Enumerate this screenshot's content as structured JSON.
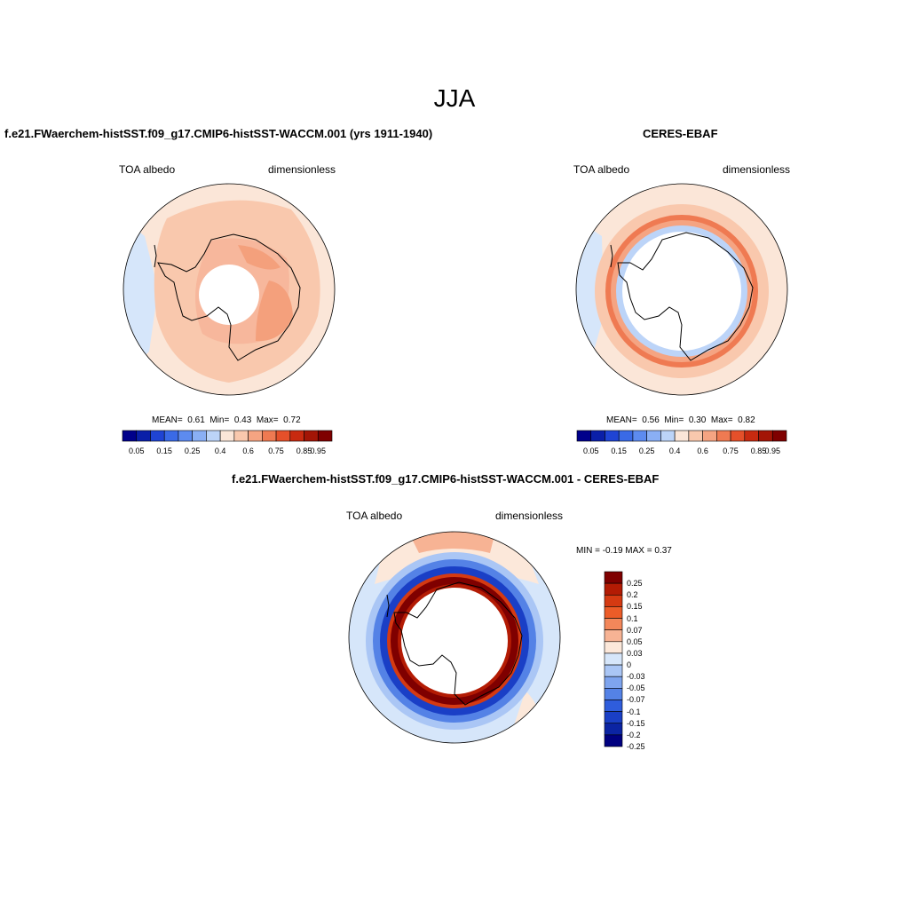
{
  "title": "JJA",
  "panels": [
    {
      "title": "f.e21.FWaerchem-histSST.f09_g17.CMIP6-histSST-WACCM.001 (yrs 1911-1940)",
      "variable": "TOA albedo",
      "units": "dimensionless",
      "stats": {
        "mean_label": "MEAN=",
        "mean": "0.61",
        "min_label": "Min=",
        "min": "0.43",
        "max_label": "Max=",
        "max": "0.72"
      }
    },
    {
      "title": "CERES-EBAF",
      "variable": "TOA albedo",
      "units": "dimensionless",
      "stats": {
        "mean_label": "MEAN=",
        "mean": "0.56",
        "min_label": "Min=",
        "min": "0.30",
        "max_label": "Max=",
        "max": "0.82"
      }
    },
    {
      "title": "f.e21.FWaerchem-histSST.f09_g17.CMIP6-histSST-WACCM.001 - CERES-EBAF",
      "variable": "TOA albedo",
      "units": "dimensionless",
      "minmax": "MIN =  -0.19 MAX =   0.37"
    }
  ],
  "colorbar_abs": {
    "colors": [
      "#00008b",
      "#0a1fa8",
      "#1f44d4",
      "#3a6ae6",
      "#5d8bef",
      "#8aaff4",
      "#bcd4f8",
      "#fbe6d8",
      "#f9c8ad",
      "#f5a482",
      "#ef7a52",
      "#e5502a",
      "#c82a10",
      "#a31506",
      "#7f0000"
    ],
    "tick_labels": [
      "0.05",
      "0.15",
      "0.25",
      "0.4",
      "0.6",
      "0.75",
      "0.85",
      "0.95"
    ]
  },
  "colorbar_diff": {
    "colors": [
      "#7f0000",
      "#b31b04",
      "#d53a12",
      "#ec5c28",
      "#f3875a",
      "#f7b394",
      "#fce8da",
      "#d6e6fa",
      "#aac6f5",
      "#7ea4ee",
      "#5482e6",
      "#2f5ddc",
      "#1a3fc6",
      "#0b24a3",
      "#000080"
    ],
    "tick_labels": [
      "0.25",
      "0.2",
      "0.15",
      "0.1",
      "0.07",
      "0.05",
      "0.03",
      "0",
      "-0.03",
      "-0.05",
      "-0.07",
      "-0.1",
      "-0.15",
      "-0.2",
      "-0.25"
    ]
  }
}
